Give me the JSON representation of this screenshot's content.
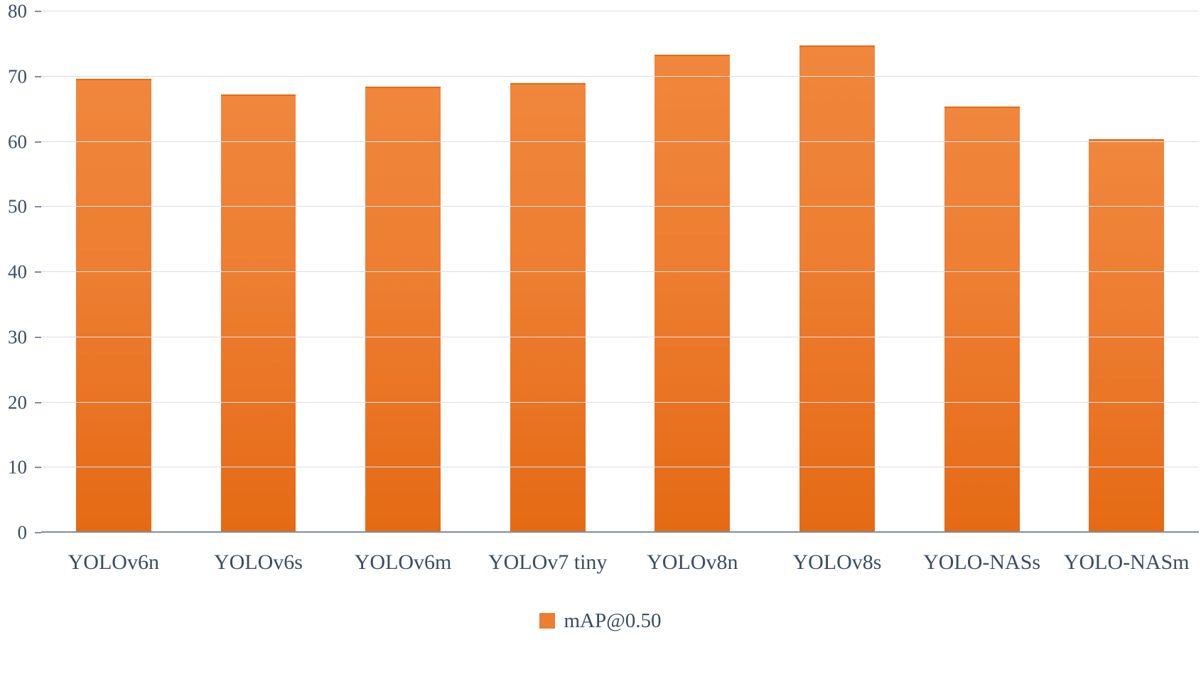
{
  "chart_data": {
    "type": "bar",
    "title": "",
    "legend": "mAP@0.50",
    "categories": [
      "YOLOv6n",
      "YOLOv6s",
      "YOLOv6m",
      "YOLOv7 tiny",
      "YOLOv8n",
      "YOLOv8s",
      "YOLO-NASs",
      "YOLO-NASm"
    ],
    "values": [
      69.7,
      67.3,
      68.5,
      69.0,
      73.4,
      74.8,
      65.4,
      60.4
    ],
    "series": [
      {
        "name": "mAP@0.50",
        "values": [
          69.7,
          67.3,
          68.5,
          69.0,
          73.4,
          74.8,
          65.4,
          60.4
        ]
      }
    ],
    "xlabel": "",
    "ylabel": "",
    "ylim": [
      0,
      80
    ],
    "ytick_step": 10,
    "ytick_labels": [
      "0",
      "10",
      "20",
      "30",
      "40",
      "50",
      "60",
      "70",
      "80"
    ],
    "grid": "horizontal",
    "legend_position": "bottom",
    "colors": {
      "bar": "#ED7D31",
      "bar_gradient_top": "#F0873C",
      "bar_gradient_bottom": "#E56A14",
      "gridline": "#D9DEE8",
      "axis": "#7F8CA1",
      "text": "#3B4C63",
      "background": "#FFFFFF"
    }
  }
}
